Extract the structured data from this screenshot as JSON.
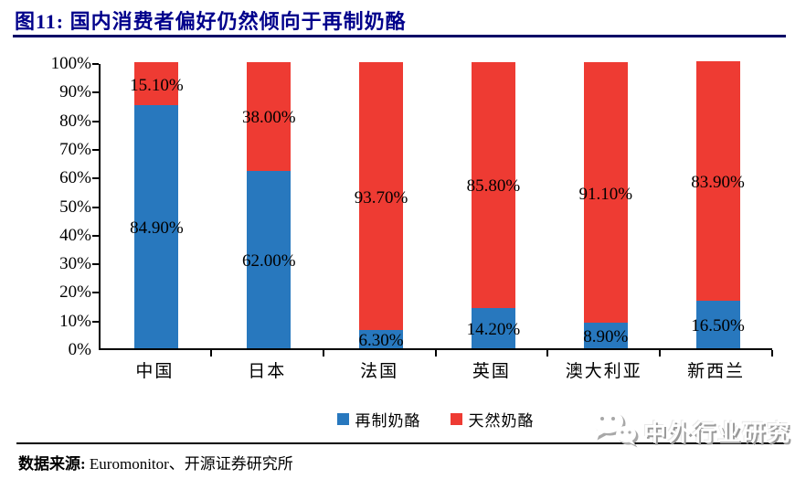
{
  "title": {
    "label": "图11:  国内消费者偏好仍然倾向于再制奶酪"
  },
  "chart_data": {
    "type": "bar",
    "stacked": true,
    "orientation": "vertical",
    "categories": [
      "中国",
      "日本",
      "法国",
      "英国",
      "澳大利亚",
      "新西兰"
    ],
    "series": [
      {
        "name": "再制奶酪",
        "color": "#2878BE",
        "values": [
          84.9,
          62.0,
          6.3,
          14.2,
          8.9,
          16.5
        ],
        "labels": [
          "84.90%",
          "62.00%",
          "6.30%",
          "14.20%",
          "8.90%",
          "16.50%"
        ]
      },
      {
        "name": "天然奶酪",
        "color": "#EE3B33",
        "values": [
          15.1,
          38.0,
          93.7,
          85.8,
          91.1,
          83.9
        ],
        "labels": [
          "15.10%",
          "38.00%",
          "93.70%",
          "85.80%",
          "91.10%",
          "83.90%"
        ]
      }
    ],
    "ylim": [
      0,
      100
    ],
    "ytick_labels": [
      "0%",
      "10%",
      "20%",
      "30%",
      "40%",
      "50%",
      "60%",
      "70%",
      "80%",
      "90%",
      "100%"
    ],
    "grid": false,
    "legend_position": "bottom"
  },
  "footer": {
    "source_prefix": "数据来源:",
    "source_text": " Euromonitor、开源证券研究所"
  },
  "watermark": {
    "label": "中外行业研究",
    "icon": "wechat-icon"
  },
  "colors": {
    "processed_blue": "#2878BE",
    "natural_red": "#EE3B33",
    "title_navy": "#00008B",
    "axis_black": "#000000"
  }
}
